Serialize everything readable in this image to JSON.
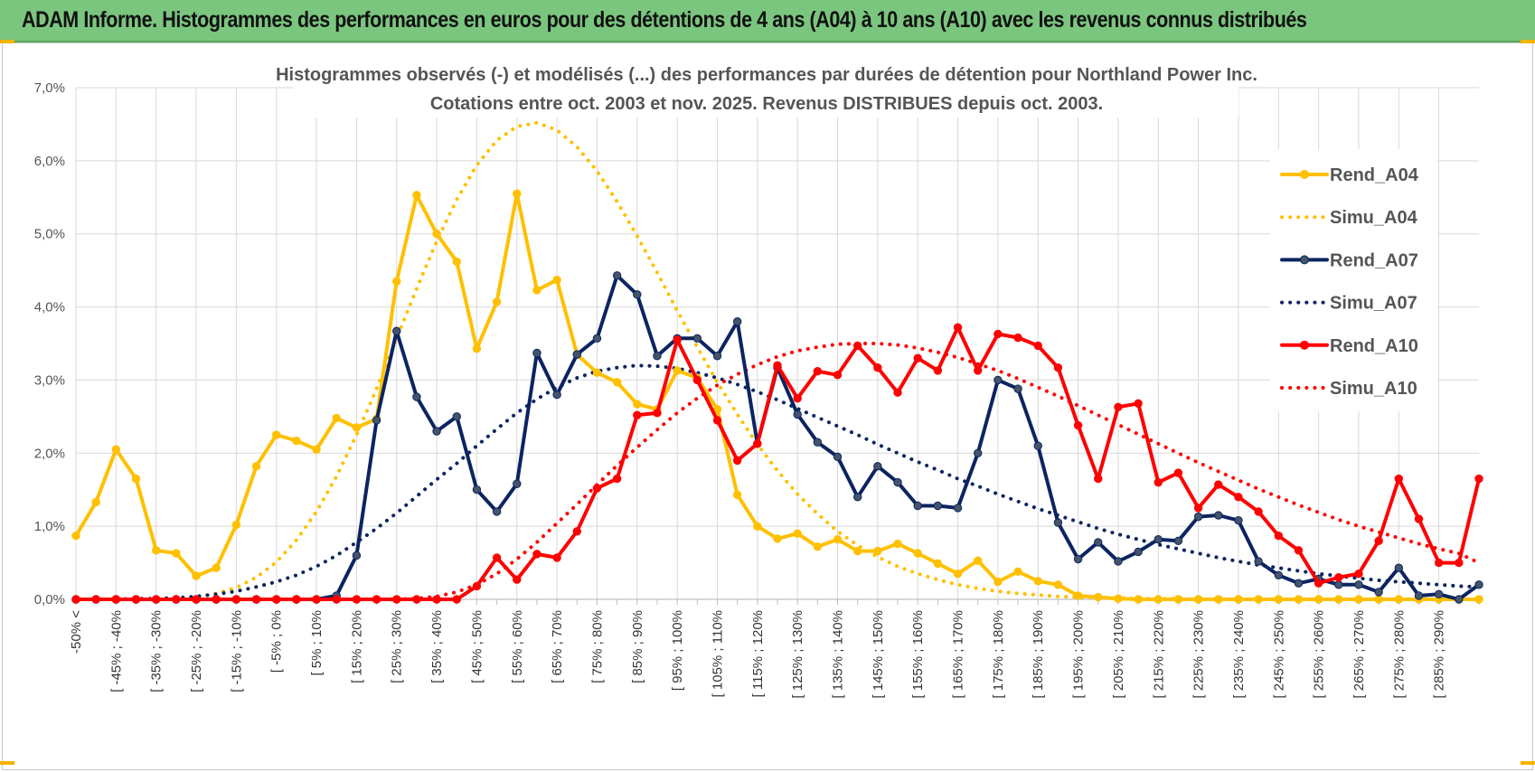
{
  "header": {
    "title": "ADAM Informe. Histogrammes des performances en euros pour des détentions de 4 ans (A04) à 10 ans (A10) avec les revenus connus distribués"
  },
  "colors": {
    "header_bg": "#7bc67e",
    "A04": "#ffc000",
    "A07": "#0c2461",
    "A10": "#ff0000",
    "grid": "#d9d9d9"
  },
  "chart_data": {
    "type": "line",
    "title_line1": "Histogrammes observés (-) et modélisés (...) des performances par durées de détention pour Northland Power Inc.",
    "title_line2": "Cotations entre oct. 2003 et nov. 2025. Revenus DISTRIBUES depuis oct. 2003.",
    "ylim": [
      0,
      7
    ],
    "y_ticks": [
      "0,0%",
      "1,0%",
      "2,0%",
      "3,0%",
      "4,0%",
      "5,0%",
      "6,0%",
      "7,0%"
    ],
    "x_tick_labels": [
      "-50% <",
      "[ -45% ; -40%",
      "[ -35% ; -30%",
      "[ -25% ; -20%",
      "[ -15% ; -10%",
      "[ -5% ; 0%",
      "[ 5% ; 10%",
      "[ 15% ; 20%",
      "[ 25% ; 30%",
      "[ 35% ; 40%",
      "[ 45% ; 50%",
      "[ 55% ; 60%",
      "[ 65% ; 70%",
      "[ 75% ; 80%",
      "[ 85% ; 90%",
      "[ 95% ; 100%",
      "[ 105% ; 110%",
      "[ 115% ; 120%",
      "[ 125% ; 130%",
      "[ 135% ; 140%",
      "[ 145% ; 150%",
      "[ 155% ; 160%",
      "[ 165% ; 170%",
      "[ 175% ; 180%",
      "[ 185% ; 190%",
      "[ 195% ; 200%",
      "[ 205% ; 210%",
      "[ 215% ; 220%",
      "[ 225% ; 230%",
      "[ 235% ; 240%",
      "[ 245% ; 250%",
      "[ 255% ; 260%",
      "[ 265% ; 270%",
      "[ 275% ; 280%",
      "[ 285% ; 290%"
    ],
    "grid": true,
    "legend_position": "right",
    "series": [
      {
        "name": "Rend_A04",
        "style": "solid",
        "marker": true,
        "color": "#ffc000",
        "values": [
          0.87,
          1.33,
          2.05,
          1.65,
          0.67,
          0.63,
          0.32,
          0.43,
          1.02,
          1.82,
          2.25,
          2.17,
          2.05,
          2.48,
          2.35,
          2.47,
          4.35,
          5.53,
          5.0,
          4.62,
          3.43,
          4.07,
          5.55,
          4.23,
          4.37,
          3.35,
          3.1,
          2.97,
          2.67,
          2.6,
          3.13,
          3.03,
          2.6,
          1.43,
          1.0,
          0.83,
          0.9,
          0.72,
          0.82,
          0.66,
          0.66,
          0.76,
          0.63,
          0.49,
          0.35,
          0.53,
          0.24,
          0.38,
          0.25,
          0.2,
          0.05,
          0.03,
          0.01,
          0.0,
          0,
          0,
          0,
          0,
          0,
          0,
          0,
          0,
          0,
          0,
          0,
          0,
          0,
          0,
          0,
          0,
          0
        ]
      },
      {
        "name": "Simu_A04",
        "style": "dotted",
        "marker": false,
        "color": "#ffc000",
        "values": [
          0.0,
          0.0,
          0.0,
          0.0,
          0.0,
          0.01,
          0.03,
          0.08,
          0.16,
          0.3,
          0.51,
          0.81,
          1.2,
          1.68,
          2.25,
          2.88,
          3.57,
          4.25,
          4.9,
          5.47,
          5.94,
          6.28,
          6.47,
          6.52,
          6.42,
          6.19,
          5.86,
          5.44,
          4.97,
          4.47,
          3.95,
          3.45,
          2.97,
          2.53,
          2.12,
          1.76,
          1.44,
          1.17,
          0.93,
          0.74,
          0.58,
          0.45,
          0.35,
          0.27,
          0.2,
          0.15,
          0.11,
          0.08,
          0.06,
          0.04,
          0.03,
          0.02,
          0.02,
          0.01,
          0.01,
          0.01,
          0.0,
          0,
          0,
          0,
          0,
          0,
          0,
          0,
          0,
          0,
          0,
          0,
          0,
          0,
          0
        ]
      },
      {
        "name": "Rend_A07",
        "style": "solid",
        "marker": true,
        "color": "#0c2461",
        "values": [
          0,
          0,
          0,
          0,
          0,
          0,
          0,
          0,
          0,
          0,
          0,
          0,
          0.0,
          0.05,
          0.6,
          2.45,
          3.67,
          2.77,
          2.3,
          2.5,
          1.5,
          1.2,
          1.58,
          3.37,
          2.8,
          3.35,
          3.57,
          4.43,
          4.17,
          3.33,
          3.57,
          3.57,
          3.33,
          3.8,
          2.13,
          3.17,
          2.53,
          2.15,
          1.95,
          1.4,
          1.82,
          1.6,
          1.28,
          1.28,
          1.25,
          2.0,
          3.0,
          2.88,
          2.1,
          1.05,
          0.55,
          0.78,
          0.52,
          0.65,
          0.82,
          0.8,
          1.13,
          1.15,
          1.08,
          0.52,
          0.33,
          0.22,
          0.28,
          0.2,
          0.2,
          0.1,
          0.43,
          0.05,
          0.07,
          0.0,
          0.2
        ]
      },
      {
        "name": "Simu_A07",
        "style": "dotted",
        "marker": true,
        "color": "#0c2461",
        "values": [
          0.0,
          0.0,
          0.0,
          0.01,
          0.01,
          0.02,
          0.04,
          0.07,
          0.11,
          0.17,
          0.24,
          0.33,
          0.45,
          0.6,
          0.78,
          0.97,
          1.18,
          1.41,
          1.64,
          1.86,
          2.1,
          2.33,
          2.55,
          2.74,
          2.9,
          3.03,
          3.12,
          3.17,
          3.2,
          3.19,
          3.16,
          3.1,
          3.03,
          2.94,
          2.84,
          2.73,
          2.61,
          2.49,
          2.37,
          2.25,
          2.12,
          2.0,
          1.88,
          1.77,
          1.65,
          1.55,
          1.44,
          1.34,
          1.24,
          1.15,
          1.06,
          0.97,
          0.89,
          0.82,
          0.75,
          0.69,
          0.63,
          0.57,
          0.52,
          0.47,
          0.43,
          0.39,
          0.35,
          0.32,
          0.29,
          0.26,
          0.24,
          0.22,
          0.2,
          0.18,
          0.17
        ]
      },
      {
        "name": "Rend_A10",
        "style": "solid",
        "marker": true,
        "color": "#ff0000",
        "values": [
          0,
          0,
          0,
          0,
          0,
          0,
          0,
          0,
          0,
          0,
          0,
          0,
          0,
          0,
          0,
          0,
          0,
          0,
          0,
          0.0,
          0.18,
          0.57,
          0.27,
          0.62,
          0.57,
          0.93,
          1.52,
          1.65,
          2.52,
          2.55,
          3.55,
          3.0,
          2.45,
          1.9,
          2.13,
          3.2,
          2.75,
          3.12,
          3.07,
          3.47,
          3.17,
          2.83,
          3.3,
          3.13,
          3.72,
          3.13,
          3.63,
          3.58,
          3.47,
          3.17,
          2.38,
          1.65,
          2.63,
          2.68,
          1.6,
          1.73,
          1.25,
          1.57,
          1.4,
          1.2,
          0.87,
          0.67,
          0.22,
          0.3,
          0.35,
          0.8,
          1.65,
          1.1,
          0.5,
          0.5,
          1.65
        ]
      },
      {
        "name": "Simu_A10",
        "style": "dotted",
        "marker": false,
        "color": "#ff0000",
        "values": [
          0.0,
          0.0,
          0.0,
          0.0,
          0.0,
          0.0,
          0.0,
          0.0,
          0.0,
          0.0,
          0.0,
          0.0,
          0.0,
          0.0,
          0.0,
          0.0,
          0.0,
          0.01,
          0.04,
          0.1,
          0.2,
          0.35,
          0.55,
          0.78,
          1.04,
          1.3,
          1.57,
          1.83,
          2.08,
          2.32,
          2.55,
          2.75,
          2.93,
          3.08,
          3.21,
          3.32,
          3.4,
          3.45,
          3.49,
          3.5,
          3.5,
          3.48,
          3.44,
          3.38,
          3.31,
          3.22,
          3.13,
          3.02,
          2.9,
          2.78,
          2.65,
          2.52,
          2.39,
          2.26,
          2.13,
          2.0,
          1.87,
          1.75,
          1.63,
          1.51,
          1.4,
          1.29,
          1.19,
          1.09,
          1.0,
          0.92,
          0.84,
          0.76,
          0.69,
          0.63,
          0.5
        ]
      }
    ]
  }
}
